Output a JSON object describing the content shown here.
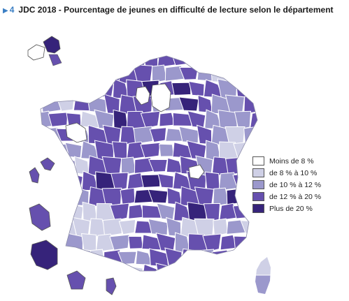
{
  "figure": {
    "marker": "▶",
    "number": "4",
    "title": "JDC 2018 - Pourcentage de jeunes en difficulté de lecture selon le département"
  },
  "legend": {
    "classes": [
      {
        "label": "Moins de 8 %",
        "color": "#ffffff"
      },
      {
        "label": "de 8 % à 10 %",
        "color": "#cfd0e6"
      },
      {
        "label": "de 10 % à 12 %",
        "color": "#9b98cc"
      },
      {
        "label": "de 12 % à 20 %",
        "color": "#6650ae"
      },
      {
        "label": "Plus de 20 %",
        "color": "#36237a"
      }
    ]
  },
  "colors": {
    "border": "#ffffff",
    "outline": "#555555",
    "title_accent": "#3b7fc4"
  }
}
